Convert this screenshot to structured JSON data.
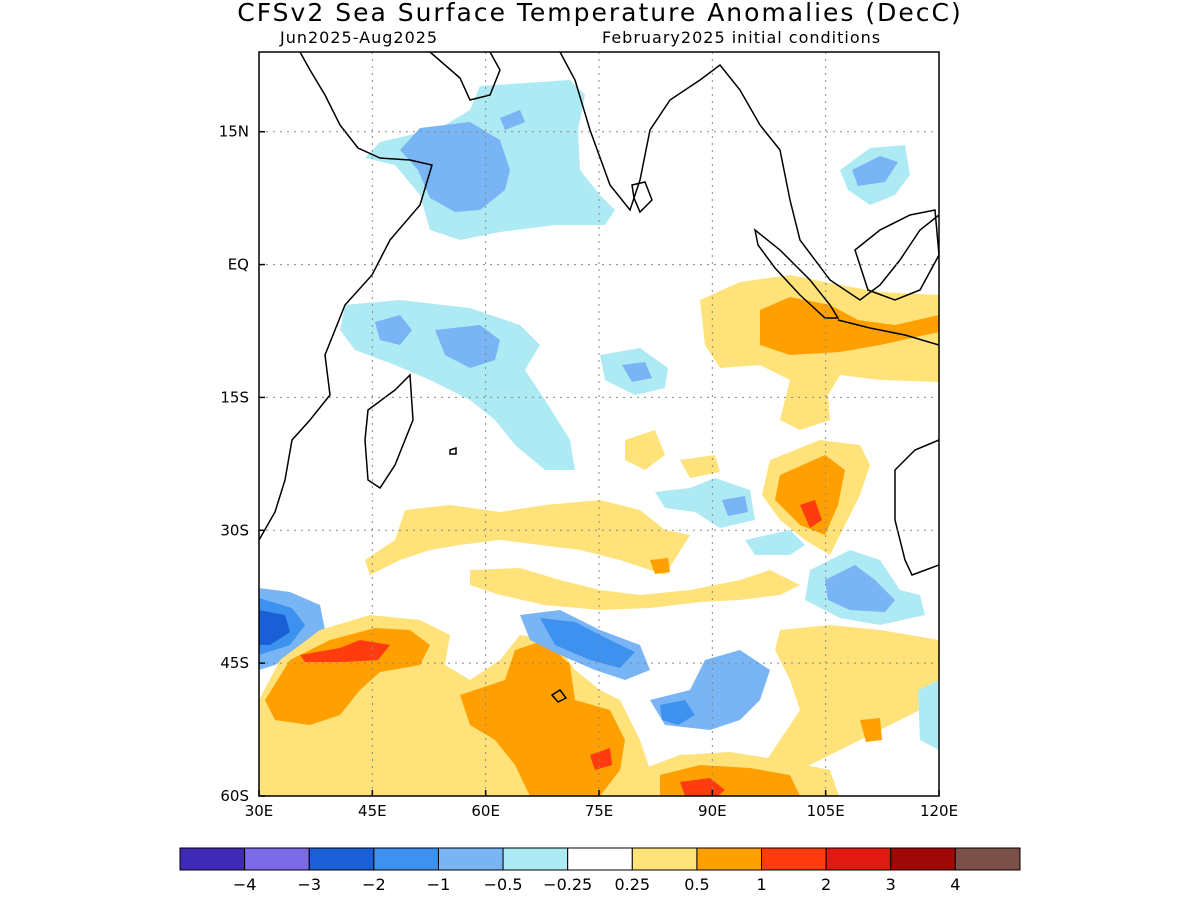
{
  "title": "CFSv2 Sea Surface Temperature Anomalies (DecC)",
  "subtitle_left": "Jun2025-Aug2025",
  "subtitle_right": "February2025 initial conditions",
  "map": {
    "lon_range": [
      30,
      120
    ],
    "lat_range": [
      -60,
      24
    ],
    "lon_ticks": [
      {
        "value": 30,
        "label": "30E"
      },
      {
        "value": 45,
        "label": "45E"
      },
      {
        "value": 60,
        "label": "60E"
      },
      {
        "value": 75,
        "label": "75E"
      },
      {
        "value": 90,
        "label": "90E"
      },
      {
        "value": 105,
        "label": "105E"
      },
      {
        "value": 120,
        "label": "120E"
      }
    ],
    "lat_ticks": [
      {
        "value": 15,
        "label": "15N"
      },
      {
        "value": 0,
        "label": "EQ"
      },
      {
        "value": -15,
        "label": "15S"
      },
      {
        "value": -30,
        "label": "30S"
      },
      {
        "value": -45,
        "label": "45S"
      },
      {
        "value": -60,
        "label": "60S"
      }
    ],
    "grid": true
  },
  "colorbar": {
    "colors": [
      "#3f2ab8",
      "#7d6ae8",
      "#1a5fd6",
      "#3d92f0",
      "#79b4f4",
      "#aeeaf4",
      "#ffffff",
      "#ffe27a",
      "#ffa000",
      "#ff3c10",
      "#e01a10",
      "#a00808",
      "#7a5048"
    ],
    "labels": [
      "-4",
      "-3",
      "-2",
      "-1",
      "-0.5",
      "-0.25",
      "0.25",
      "0.5",
      "1",
      "2",
      "3",
      "4"
    ]
  },
  "chart_data": {
    "type": "heatmap",
    "variable": "Sea Surface Temperature Anomalies (DecC)",
    "units": "DecC",
    "x_axis": "longitude",
    "y_axis": "latitude",
    "levels": [
      -4,
      -3,
      -2,
      -1,
      -0.5,
      -0.25,
      0.25,
      0.5,
      1,
      2,
      3,
      4
    ],
    "anomaly_regions": [
      {
        "lon": [
          40,
          75
        ],
        "lat": [
          5,
          20
        ],
        "value": -0.25
      },
      {
        "lon": [
          48,
          57
        ],
        "lat": [
          10,
          15
        ],
        "value": -0.5
      },
      {
        "lon": [
          42,
          65
        ],
        "lat": [
          -10,
          -20
        ],
        "value": -0.25
      },
      {
        "lon": [
          45,
          58
        ],
        "lat": [
          -7,
          -10
        ],
        "value": -0.5
      },
      {
        "lon": [
          90,
          120
        ],
        "lat": [
          -2,
          -15
        ],
        "value": 0.5
      },
      {
        "lon": [
          97,
          112
        ],
        "lat": [
          -5,
          -10
        ],
        "value": 1
      },
      {
        "lon": [
          98,
          106
        ],
        "lat": [
          -20,
          -30
        ],
        "value": 1
      },
      {
        "lon": [
          30,
          37
        ],
        "lat": [
          -38,
          -43
        ],
        "value": -2
      },
      {
        "lon": [
          38,
          52
        ],
        "lat": [
          -40,
          -46
        ],
        "value": 1
      },
      {
        "lon": [
          41,
          48
        ],
        "lat": [
          -44,
          -45
        ],
        "value": 2
      },
      {
        "lon": [
          65,
          80
        ],
        "lat": [
          -40,
          -46
        ],
        "value": -1
      },
      {
        "lon": [
          60,
          80
        ],
        "lat": [
          -45,
          -60
        ],
        "value": 1
      },
      {
        "lon": [
          85,
          100
        ],
        "lat": [
          -45,
          -52
        ],
        "value": -1
      },
      {
        "lon": [
          85,
          100
        ],
        "lat": [
          -56,
          -60
        ],
        "value": 1
      }
    ]
  }
}
